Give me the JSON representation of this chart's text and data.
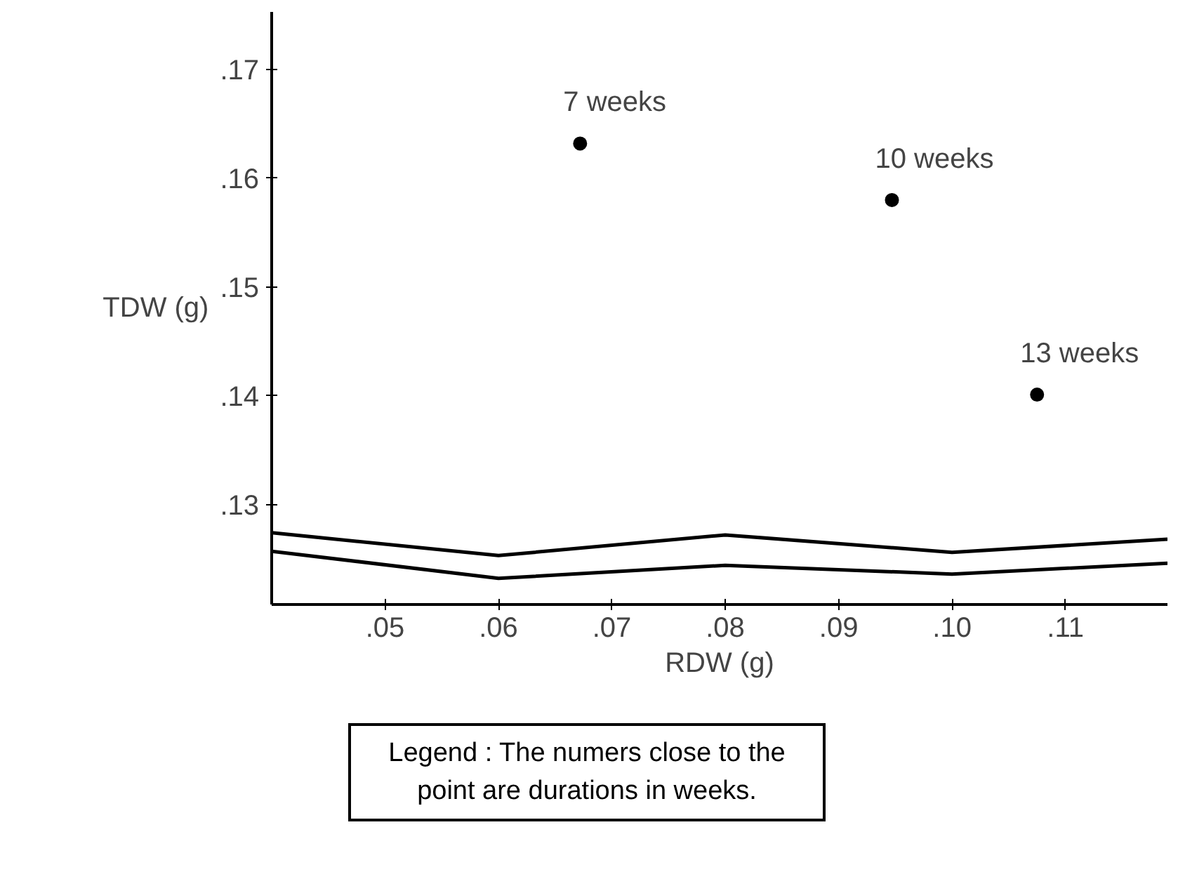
{
  "chart_data": {
    "type": "scatter",
    "xlabel": "RDW (g)",
    "ylabel": "TDW (g)",
    "xlim": [
      0.04,
      0.119
    ],
    "ylim": [
      0.1208,
      0.1753
    ],
    "xticks": [
      {
        "value": 0.05,
        "label": ".05"
      },
      {
        "value": 0.06,
        "label": ".06"
      },
      {
        "value": 0.07,
        "label": ".07"
      },
      {
        "value": 0.08,
        "label": ".08"
      },
      {
        "value": 0.09,
        "label": ".09"
      },
      {
        "value": 0.1,
        "label": ".10"
      },
      {
        "value": 0.11,
        "label": ".11"
      }
    ],
    "yticks": [
      {
        "value": 0.13,
        "label": ".13"
      },
      {
        "value": 0.14,
        "label": ".14"
      },
      {
        "value": 0.15,
        "label": ".15"
      },
      {
        "value": 0.16,
        "label": ".16"
      },
      {
        "value": 0.17,
        "label": ".17"
      }
    ],
    "series": [
      {
        "marker": "circle",
        "color": "#000000",
        "x": [
          0.0672,
          0.0947,
          0.1075
        ],
        "values": [
          0.1632,
          0.158,
          0.1401
        ]
      },
      {
        "type": "line",
        "color": "#000000",
        "x": [
          0.04,
          0.06,
          0.08,
          0.1,
          0.119
        ],
        "values": [
          0.1274,
          0.1253,
          0.1272,
          0.1256,
          0.1268
        ]
      },
      {
        "type": "line",
        "color": "#000000",
        "x": [
          0.04,
          0.06,
          0.08,
          0.1,
          0.119
        ],
        "values": [
          0.1257,
          0.1232,
          0.1244,
          0.1236,
          0.1246
        ]
      }
    ],
    "line_style": "solid",
    "grid": false,
    "annotations": [
      {
        "text": "7 weeks",
        "x": 0.0672,
        "y": 0.1632
      },
      {
        "text": "10 weeks",
        "x": 0.0947,
        "y": 0.158
      },
      {
        "text": "13 weeks",
        "x": 0.1075,
        "y": 0.1401
      },
      "Legend : The numers close to the point are durations in weeks."
    ]
  }
}
